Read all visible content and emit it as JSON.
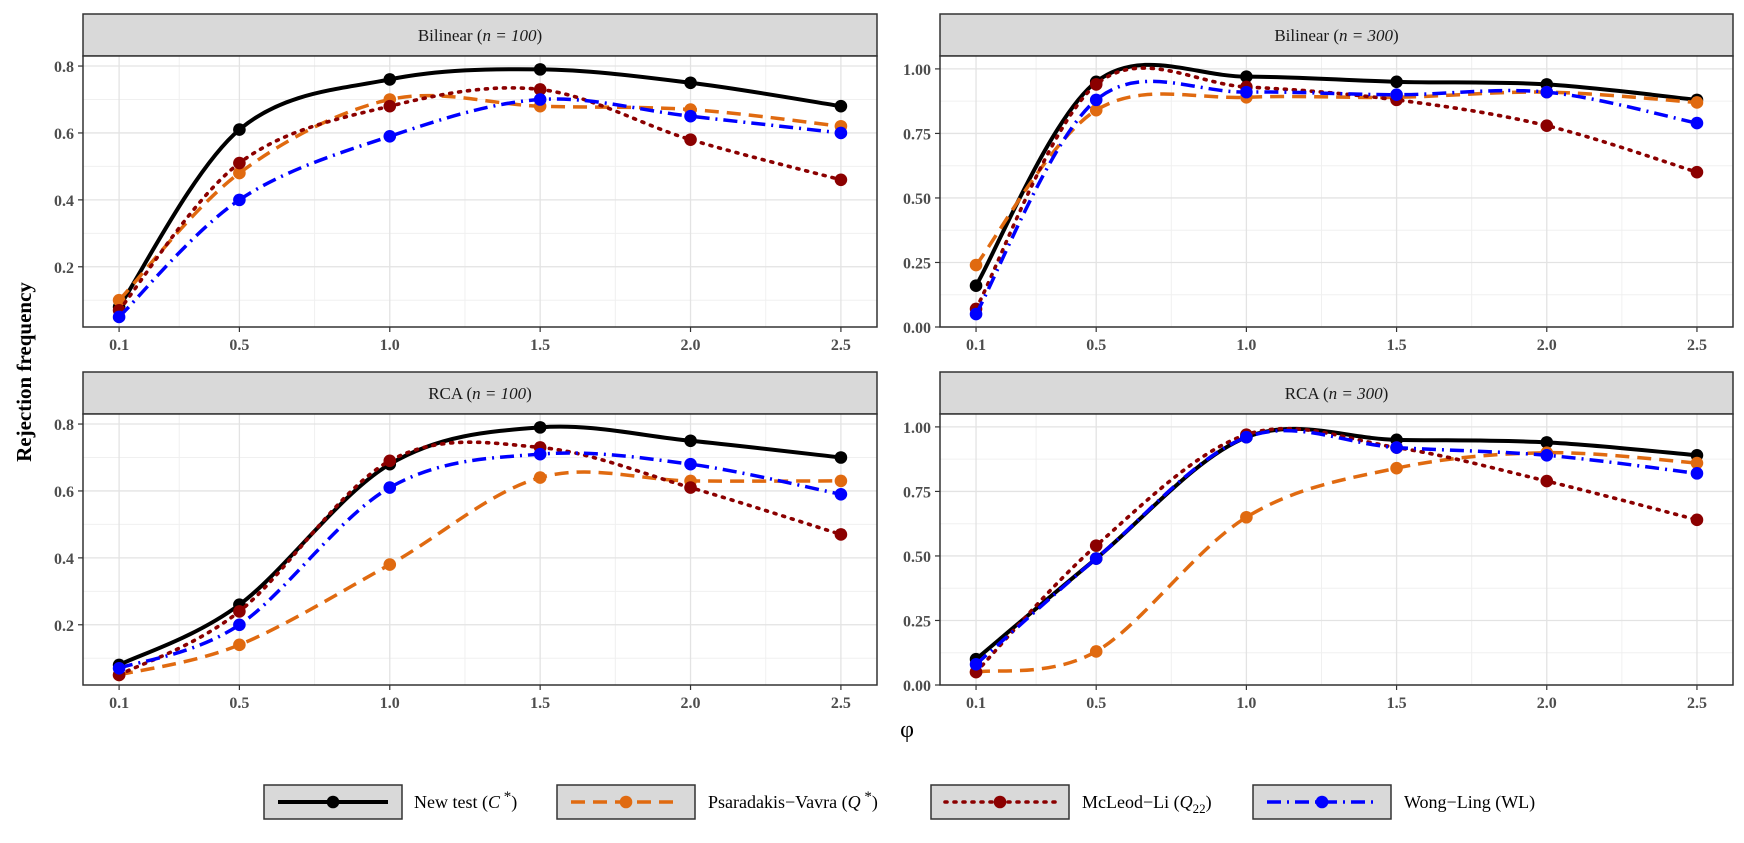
{
  "chart_data": {
    "type": "line",
    "xlabel": "φ",
    "ylabel": "Rejection frequency",
    "x": [
      0.1,
      0.5,
      1.0,
      1.5,
      2.0,
      2.5
    ],
    "x_ticks": [
      "0.1",
      "0.5",
      "1.0",
      "1.5",
      "2.0",
      "2.5"
    ],
    "grid": true,
    "legend_position": "bottom",
    "series_meta": [
      {
        "key": "new",
        "name_main": "New test (",
        "name_italic": "C",
        "name_sup": " *",
        "name_sub": "",
        "name_tail": ")",
        "color": "#000000",
        "dash": "solid"
      },
      {
        "key": "pv",
        "name_main": "Psaradakis−Vavra (",
        "name_italic": "Q",
        "name_sup": " *",
        "name_sub": "",
        "name_tail": ")",
        "color": "#E06A10",
        "dash": "dashed"
      },
      {
        "key": "ml",
        "name_main": "McLeod−Li (",
        "name_italic": "Q",
        "name_sup": "",
        "name_sub": "22",
        "name_tail": ")",
        "color": "#8B0000",
        "dash": "dotted"
      },
      {
        "key": "wl",
        "name_main": "Wong−Ling (WL)",
        "name_italic": "",
        "name_sup": "",
        "name_sub": "",
        "name_tail": "",
        "color": "#0000FF",
        "dash": "dotdash"
      }
    ],
    "panels": [
      {
        "model": "Bilinear",
        "n": "100",
        "ylim": [
          0.02,
          0.83
        ],
        "y_ticks": [
          0.2,
          0.4,
          0.6,
          0.8
        ],
        "y_tick_labels": [
          "0.2",
          "0.4",
          "0.6",
          "0.8"
        ],
        "series": [
          {
            "key": "new",
            "values": [
              0.08,
              0.61,
              0.76,
              0.79,
              0.75,
              0.68
            ]
          },
          {
            "key": "pv",
            "values": [
              0.1,
              0.48,
              0.7,
              0.68,
              0.67,
              0.62
            ]
          },
          {
            "key": "ml",
            "values": [
              0.07,
              0.51,
              0.68,
              0.73,
              0.58,
              0.46
            ]
          },
          {
            "key": "wl",
            "values": [
              0.05,
              0.4,
              0.59,
              0.7,
              0.65,
              0.6
            ]
          }
        ]
      },
      {
        "model": "Bilinear",
        "n": "300",
        "ylim": [
          0.0,
          1.05
        ],
        "y_ticks": [
          0.0,
          0.25,
          0.5,
          0.75,
          1.0
        ],
        "y_tick_labels": [
          "0.00",
          "0.25",
          "0.50",
          "0.75",
          "1.00"
        ],
        "series": [
          {
            "key": "new",
            "values": [
              0.16,
              0.95,
              0.97,
              0.95,
              0.94,
              0.88
            ]
          },
          {
            "key": "pv",
            "values": [
              0.24,
              0.84,
              0.89,
              0.89,
              0.91,
              0.87
            ]
          },
          {
            "key": "ml",
            "values": [
              0.07,
              0.94,
              0.93,
              0.88,
              0.78,
              0.6
            ]
          },
          {
            "key": "wl",
            "values": [
              0.05,
              0.88,
              0.91,
              0.9,
              0.91,
              0.79
            ]
          }
        ]
      },
      {
        "model": "RCA",
        "n": "100",
        "ylim": [
          0.02,
          0.83
        ],
        "y_ticks": [
          0.2,
          0.4,
          0.6,
          0.8
        ],
        "y_tick_labels": [
          "0.2",
          "0.4",
          "0.6",
          "0.8"
        ],
        "series": [
          {
            "key": "new",
            "values": [
              0.08,
              0.26,
              0.68,
              0.79,
              0.75,
              0.7
            ]
          },
          {
            "key": "pv",
            "values": [
              0.05,
              0.14,
              0.38,
              0.64,
              0.63,
              0.63
            ]
          },
          {
            "key": "ml",
            "values": [
              0.05,
              0.24,
              0.69,
              0.73,
              0.61,
              0.47
            ]
          },
          {
            "key": "wl",
            "values": [
              0.07,
              0.2,
              0.61,
              0.71,
              0.68,
              0.59
            ]
          }
        ]
      },
      {
        "model": "RCA",
        "n": "300",
        "ylim": [
          0.0,
          1.05
        ],
        "y_ticks": [
          0.0,
          0.25,
          0.5,
          0.75,
          1.0
        ],
        "y_tick_labels": [
          "0.00",
          "0.25",
          "0.50",
          "0.75",
          "1.00"
        ],
        "series": [
          {
            "key": "new",
            "values": [
              0.1,
              0.49,
              0.96,
              0.95,
              0.94,
              0.89
            ]
          },
          {
            "key": "pv",
            "values": [
              0.05,
              0.13,
              0.65,
              0.84,
              0.9,
              0.86
            ]
          },
          {
            "key": "ml",
            "values": [
              0.05,
              0.54,
              0.97,
              0.92,
              0.79,
              0.64
            ]
          },
          {
            "key": "wl",
            "values": [
              0.08,
              0.49,
              0.96,
              0.92,
              0.89,
              0.82
            ]
          }
        ]
      }
    ]
  }
}
